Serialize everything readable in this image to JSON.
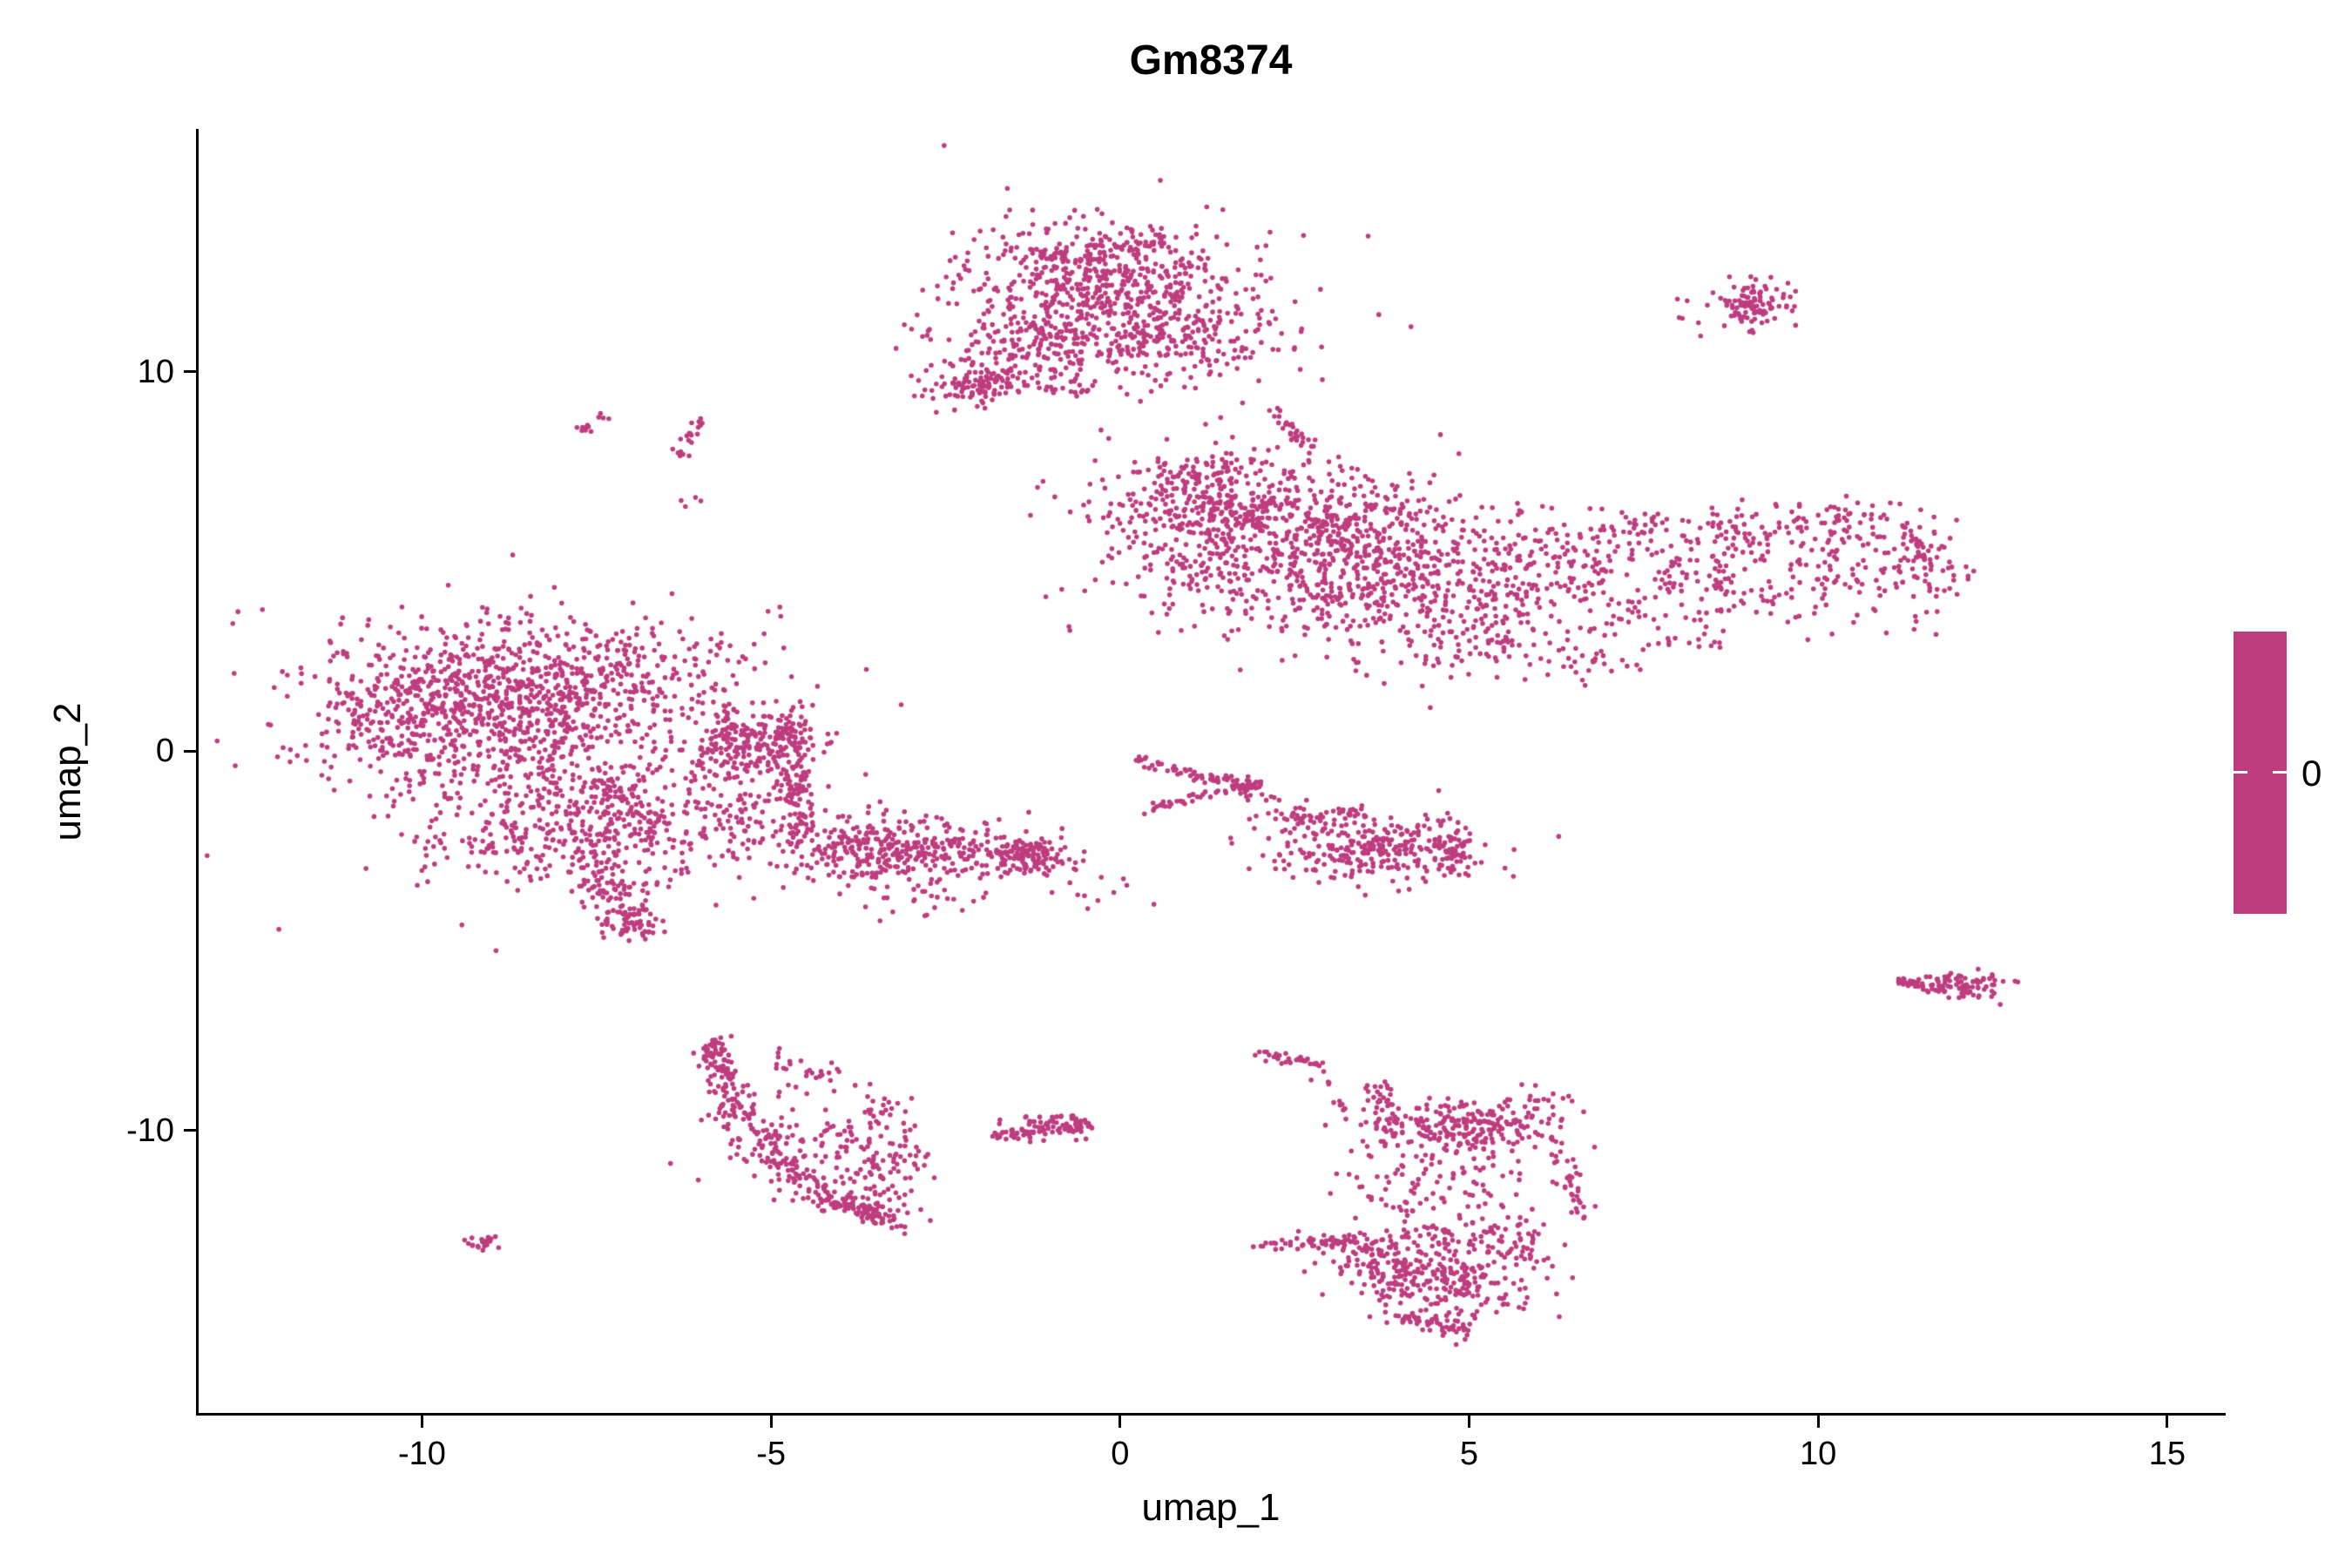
{
  "figure": {
    "title": "Gm8374",
    "x_axis_label": "umap_1",
    "y_axis_label": "umap_2",
    "legend_label": "0"
  },
  "chart_data": {
    "type": "scatter",
    "title": "Gm8374",
    "xlabel": "umap_1",
    "ylabel": "umap_2",
    "xlim": [
      -13.2,
      15.8
    ],
    "ylim": [
      -17.45,
      16.35
    ],
    "x_ticks": [
      -10,
      -5,
      0,
      5,
      10,
      15
    ],
    "y_ticks": [
      -10,
      0,
      10
    ],
    "grid": false,
    "legend_position": "right",
    "point_color": "#BE3D7F",
    "point_radius": 2.8,
    "legend": {
      "type": "colorbar",
      "tick_labels": [
        "0"
      ],
      "color": "#BE3D7F"
    },
    "clusters": [
      {
        "name": "top-core",
        "kind": "blob",
        "cx": -0.2,
        "cy": 12.3,
        "sx": 0.95,
        "sy": 0.8,
        "n": 480
      },
      {
        "name": "top-lower-left",
        "kind": "blob",
        "cx": -1.2,
        "cy": 10.6,
        "sx": 0.75,
        "sy": 0.7,
        "n": 220
      },
      {
        "name": "top-lower-right",
        "kind": "blob",
        "cx": 0.9,
        "cy": 10.9,
        "sx": 0.75,
        "sy": 0.6,
        "n": 170
      },
      {
        "name": "top-tail-knot",
        "kind": "blob",
        "cx": -2.15,
        "cy": 9.6,
        "sx": 0.3,
        "sy": 0.25,
        "n": 50
      },
      {
        "name": "top-tail-ridge",
        "kind": "line",
        "x1": -2.4,
        "y1": 9.4,
        "x2": -1.6,
        "y2": 9.95,
        "jitter": 0.15,
        "n": 40
      },
      {
        "name": "top-halo",
        "kind": "blob",
        "cx": -0.2,
        "cy": 11.6,
        "sx": 1.5,
        "sy": 1.4,
        "n": 130
      },
      {
        "name": "top-rim",
        "kind": "line",
        "x1": -1.2,
        "y1": 13.1,
        "x2": 0.5,
        "y2": 13.35,
        "jitter": 0.12,
        "n": 50
      },
      {
        "name": "ne-streak",
        "kind": "line",
        "x1": 2.15,
        "y1": 9.05,
        "x2": 2.7,
        "y2": 7.95,
        "jitter": 0.07,
        "n": 28
      },
      {
        "name": "top-right-island",
        "kind": "blob",
        "cx": 9.1,
        "cy": 11.8,
        "sx": 0.28,
        "sy": 0.28,
        "n": 90
      },
      {
        "name": "top-right-halo",
        "kind": "blob",
        "cx": 8.8,
        "cy": 11.4,
        "sx": 0.45,
        "sy": 0.4,
        "n": 18
      },
      {
        "name": "right-main-a",
        "kind": "blob",
        "cx": 2.1,
        "cy": 5.4,
        "sx": 1.25,
        "sy": 1.0,
        "n": 560
      },
      {
        "name": "right-main-b",
        "kind": "blob",
        "cx": 4.3,
        "cy": 4.3,
        "sx": 1.15,
        "sy": 0.95,
        "n": 430
      },
      {
        "name": "right-main-upper",
        "kind": "blob",
        "cx": 1.2,
        "cy": 6.4,
        "sx": 0.8,
        "sy": 0.55,
        "n": 180
      },
      {
        "name": "right-main-top",
        "kind": "blob",
        "cx": 3.3,
        "cy": 6.2,
        "sx": 0.9,
        "sy": 0.5,
        "n": 150
      },
      {
        "name": "right-connector",
        "kind": "blob",
        "cx": 6.1,
        "cy": 4.8,
        "sx": 0.7,
        "sy": 0.8,
        "n": 110
      },
      {
        "name": "right-arm-top",
        "kind": "line",
        "x1": 6.9,
        "y1": 5.7,
        "x2": 11.2,
        "y2": 6.1,
        "jitter": 0.35,
        "n": 160
      },
      {
        "name": "right-arm-mid",
        "kind": "line",
        "x1": 7.0,
        "y1": 4.4,
        "x2": 10.9,
        "y2": 5.0,
        "jitter": 0.55,
        "n": 150
      },
      {
        "name": "right-arm-tip",
        "kind": "blob",
        "cx": 11.5,
        "cy": 4.9,
        "sx": 0.35,
        "sy": 0.65,
        "n": 90
      },
      {
        "name": "right-arm-low",
        "kind": "line",
        "x1": 7.3,
        "y1": 3.4,
        "x2": 10.5,
        "y2": 4.2,
        "jitter": 0.4,
        "n": 60
      },
      {
        "name": "right-below-a",
        "kind": "blob",
        "cx": 6.8,
        "cy": 2.3,
        "sx": 0.35,
        "sy": 0.25,
        "n": 25
      },
      {
        "name": "right-below-b",
        "kind": "blob",
        "cx": 8.1,
        "cy": 2.85,
        "sx": 0.3,
        "sy": 0.15,
        "n": 12
      },
      {
        "name": "right-top-rim",
        "kind": "line",
        "x1": 0.4,
        "y1": 7.2,
        "x2": 2.2,
        "y2": 7.65,
        "jitter": 0.18,
        "n": 60
      },
      {
        "name": "right-sparse-low",
        "kind": "blob",
        "cx": 5.3,
        "cy": 3.0,
        "sx": 0.6,
        "sy": 0.5,
        "n": 50
      },
      {
        "name": "left-core",
        "kind": "blob",
        "cx": -8.9,
        "cy": 0.9,
        "sx": 1.25,
        "sy": 1.15,
        "n": 800
      },
      {
        "name": "left-upper",
        "kind": "blob",
        "cx": -7.2,
        "cy": 2.2,
        "sx": 1.0,
        "sy": 0.7,
        "n": 240
      },
      {
        "name": "left-west-edge",
        "kind": "blob",
        "cx": -10.2,
        "cy": 1.2,
        "sx": 0.6,
        "sy": 0.8,
        "n": 160
      },
      {
        "name": "left-east-knot",
        "kind": "blob",
        "cx": -5.3,
        "cy": 0.3,
        "sx": 0.5,
        "sy": 0.45,
        "n": 200
      },
      {
        "name": "left-lower-lobe",
        "kind": "blob",
        "cx": -7.9,
        "cy": -2.2,
        "sx": 1.0,
        "sy": 0.75,
        "n": 300
      },
      {
        "name": "left-tail",
        "kind": "line",
        "x1": -7.4,
        "y1": -3.3,
        "x2": -6.95,
        "y2": -4.75,
        "jitter": 0.22,
        "n": 90
      },
      {
        "name": "left-tail-tip",
        "kind": "blob",
        "cx": -7.0,
        "cy": -4.6,
        "sx": 0.2,
        "sy": 0.2,
        "n": 30
      },
      {
        "name": "left-halo",
        "kind": "blob",
        "cx": -8.2,
        "cy": 0.2,
        "sx": 2.1,
        "sy": 1.9,
        "n": 140
      },
      {
        "name": "left-right-edge",
        "kind": "line",
        "x1": -4.65,
        "y1": -2.2,
        "x2": -4.6,
        "y2": 0.7,
        "jitter": 0.12,
        "n": 110
      },
      {
        "name": "left-connector",
        "kind": "blob",
        "cx": -5.6,
        "cy": -1.3,
        "sx": 0.65,
        "sy": 0.85,
        "n": 150
      },
      {
        "name": "left-diag-ridge",
        "kind": "line",
        "x1": -7.6,
        "y1": -0.8,
        "x2": -6.2,
        "y2": -2.4,
        "jitter": 0.2,
        "n": 80
      },
      {
        "name": "nw-streak-a",
        "kind": "line",
        "x1": -7.75,
        "y1": 8.4,
        "x2": -7.3,
        "y2": 8.85,
        "jitter": 0.08,
        "n": 14
      },
      {
        "name": "nw-streak-b",
        "kind": "line",
        "x1": -6.35,
        "y1": 7.7,
        "x2": -5.95,
        "y2": 8.8,
        "jitter": 0.1,
        "n": 20
      },
      {
        "name": "nw-dots",
        "kind": "blob",
        "cx": -6.2,
        "cy": 6.6,
        "sx": 0.15,
        "sy": 0.1,
        "n": 4
      },
      {
        "name": "mid-band-core",
        "kind": "blob",
        "cx": -2.8,
        "cy": -2.65,
        "sx": 0.75,
        "sy": 0.45,
        "n": 240
      },
      {
        "name": "mid-band-west",
        "kind": "blob",
        "cx": -4.0,
        "cy": -2.5,
        "sx": 0.6,
        "sy": 0.5,
        "n": 140
      },
      {
        "name": "mid-band-east",
        "kind": "line",
        "x1": -2.0,
        "y1": -2.5,
        "x2": -0.9,
        "y2": -2.9,
        "jitter": 0.2,
        "n": 70
      },
      {
        "name": "mid-band-knot",
        "kind": "blob",
        "cx": -1.2,
        "cy": -2.85,
        "sx": 0.25,
        "sy": 0.2,
        "n": 50
      },
      {
        "name": "mid-band-below",
        "kind": "blob",
        "cx": -2.9,
        "cy": -3.9,
        "sx": 0.6,
        "sy": 0.25,
        "n": 20
      },
      {
        "name": "arrow-top",
        "kind": "line",
        "x1": 0.15,
        "y1": -0.2,
        "x2": 1.85,
        "y2": -0.95,
        "jitter": 0.07,
        "n": 55
      },
      {
        "name": "arrow-bottom",
        "kind": "line",
        "x1": 0.3,
        "y1": -1.55,
        "x2": 1.85,
        "y2": -0.95,
        "jitter": 0.07,
        "n": 45
      },
      {
        "name": "arrow-tip",
        "kind": "blob",
        "cx": 1.9,
        "cy": -0.95,
        "sx": 0.12,
        "sy": 0.12,
        "n": 25
      },
      {
        "name": "mid-right-blob",
        "kind": "blob",
        "cx": 3.7,
        "cy": -2.55,
        "sx": 0.75,
        "sy": 0.5,
        "n": 280
      },
      {
        "name": "mid-right-top",
        "kind": "line",
        "x1": 2.6,
        "y1": -1.75,
        "x2": 3.5,
        "y2": -1.6,
        "jitter": 0.12,
        "n": 30
      },
      {
        "name": "mid-right-conn",
        "kind": "blob",
        "cx": 2.3,
        "cy": -1.7,
        "sx": 0.35,
        "sy": 0.4,
        "n": 25
      },
      {
        "name": "mid-right-edge",
        "kind": "line",
        "x1": 4.75,
        "y1": -2.3,
        "x2": 4.85,
        "y2": -3.2,
        "jitter": 0.1,
        "n": 40
      },
      {
        "name": "mid-sparse-dots",
        "kind": "blob",
        "cx": -0.2,
        "cy": -3.8,
        "sx": 0.45,
        "sy": 0.25,
        "n": 12
      },
      {
        "name": "sw-left-edge",
        "kind": "line",
        "x1": -5.85,
        "y1": -7.7,
        "x2": -5.55,
        "y2": -9.3,
        "jitter": 0.13,
        "n": 70
      },
      {
        "name": "sw-arc-a",
        "kind": "line",
        "x1": -5.6,
        "y1": -9.3,
        "x2": -4.4,
        "y2": -11.5,
        "jitter": 0.22,
        "n": 110
      },
      {
        "name": "sw-arc-b",
        "kind": "line",
        "x1": -4.4,
        "y1": -11.7,
        "x2": -3.3,
        "y2": -12.35,
        "jitter": 0.16,
        "n": 110
      },
      {
        "name": "sw-right-lobe",
        "kind": "blob",
        "cx": -3.35,
        "cy": -10.9,
        "sx": 0.3,
        "sy": 0.75,
        "n": 110
      },
      {
        "name": "sw-interior",
        "kind": "blob",
        "cx": -4.6,
        "cy": -10.2,
        "sx": 0.65,
        "sy": 0.75,
        "n": 90
      },
      {
        "name": "sw-top-dots",
        "kind": "line",
        "x1": -5.0,
        "y1": -8.1,
        "x2": -4.2,
        "y2": -8.6,
        "jitter": 0.15,
        "n": 22
      },
      {
        "name": "sw-top-tip",
        "kind": "blob",
        "cx": -5.8,
        "cy": -7.85,
        "sx": 0.12,
        "sy": 0.18,
        "n": 25
      },
      {
        "name": "sw-ne-dots",
        "kind": "blob",
        "cx": -3.6,
        "cy": -9.3,
        "sx": 0.2,
        "sy": 0.3,
        "n": 10
      },
      {
        "name": "tiny-west",
        "kind": "line",
        "x1": -9.35,
        "y1": -13.05,
        "x2": -8.95,
        "y2": -12.9,
        "jitter": 0.07,
        "n": 22
      },
      {
        "name": "south-streak",
        "kind": "line",
        "x1": -1.75,
        "y1": -10.15,
        "x2": -0.45,
        "y2": -9.85,
        "jitter": 0.12,
        "n": 90
      },
      {
        "name": "south-streak-top",
        "kind": "blob",
        "cx": -1.0,
        "cy": -9.7,
        "sx": 0.3,
        "sy": 0.08,
        "n": 15
      },
      {
        "name": "sr-top-streak",
        "kind": "line",
        "x1": 2.1,
        "y1": -8.0,
        "x2": 2.85,
        "y2": -8.25,
        "jitter": 0.08,
        "n": 30
      },
      {
        "name": "sr-trail",
        "kind": "line",
        "x1": 2.9,
        "y1": -8.5,
        "x2": 3.3,
        "y2": -9.6,
        "jitter": 0.12,
        "n": 12
      },
      {
        "name": "sr-vline",
        "kind": "line",
        "x1": 3.7,
        "y1": -8.8,
        "x2": 3.85,
        "y2": -10.4,
        "jitter": 0.12,
        "n": 55
      },
      {
        "name": "sr-band",
        "kind": "blob",
        "cx": 5.0,
        "cy": -9.9,
        "sx": 0.6,
        "sy": 0.35,
        "n": 210
      },
      {
        "name": "sr-band-ne",
        "kind": "blob",
        "cx": 6.0,
        "cy": -9.2,
        "sx": 0.25,
        "sy": 0.2,
        "n": 18
      },
      {
        "name": "sr-right-arm",
        "kind": "line",
        "x1": 6.25,
        "y1": -10.3,
        "x2": 6.55,
        "y2": -12.2,
        "jitter": 0.1,
        "n": 35
      },
      {
        "name": "sr-mid-sparse",
        "kind": "blob",
        "cx": 4.5,
        "cy": -11.4,
        "sx": 0.8,
        "sy": 0.7,
        "n": 110
      },
      {
        "name": "sr-left-streak",
        "kind": "line",
        "x1": 2.05,
        "y1": -13.05,
        "x2": 3.4,
        "y2": -12.9,
        "jitter": 0.1,
        "n": 65
      },
      {
        "name": "sr-bottom-blob",
        "kind": "blob",
        "cx": 4.6,
        "cy": -13.7,
        "sx": 0.7,
        "sy": 0.65,
        "n": 340
      },
      {
        "name": "sr-bottom-tail",
        "kind": "line",
        "x1": 4.1,
        "y1": -14.9,
        "x2": 5.0,
        "y2": -15.25,
        "jitter": 0.12,
        "n": 40
      },
      {
        "name": "sr-right-edge",
        "kind": "line",
        "x1": 5.75,
        "y1": -12.4,
        "x2": 5.95,
        "y2": -13.6,
        "jitter": 0.1,
        "n": 30
      },
      {
        "name": "sr-left-edge",
        "kind": "blob",
        "cx": 3.6,
        "cy": -13.3,
        "sx": 0.2,
        "sy": 0.4,
        "n": 40
      },
      {
        "name": "east-island",
        "kind": "blob",
        "cx": 12.05,
        "cy": -6.2,
        "sx": 0.32,
        "sy": 0.18,
        "n": 85
      },
      {
        "name": "east-streak",
        "kind": "line",
        "x1": 11.05,
        "y1": -6.05,
        "x2": 11.6,
        "y2": -6.15,
        "jitter": 0.05,
        "n": 18
      },
      {
        "name": "east-dots",
        "kind": "blob",
        "cx": 11.3,
        "cy": -6.1,
        "sx": 0.15,
        "sy": 0.06,
        "n": 8
      }
    ]
  }
}
